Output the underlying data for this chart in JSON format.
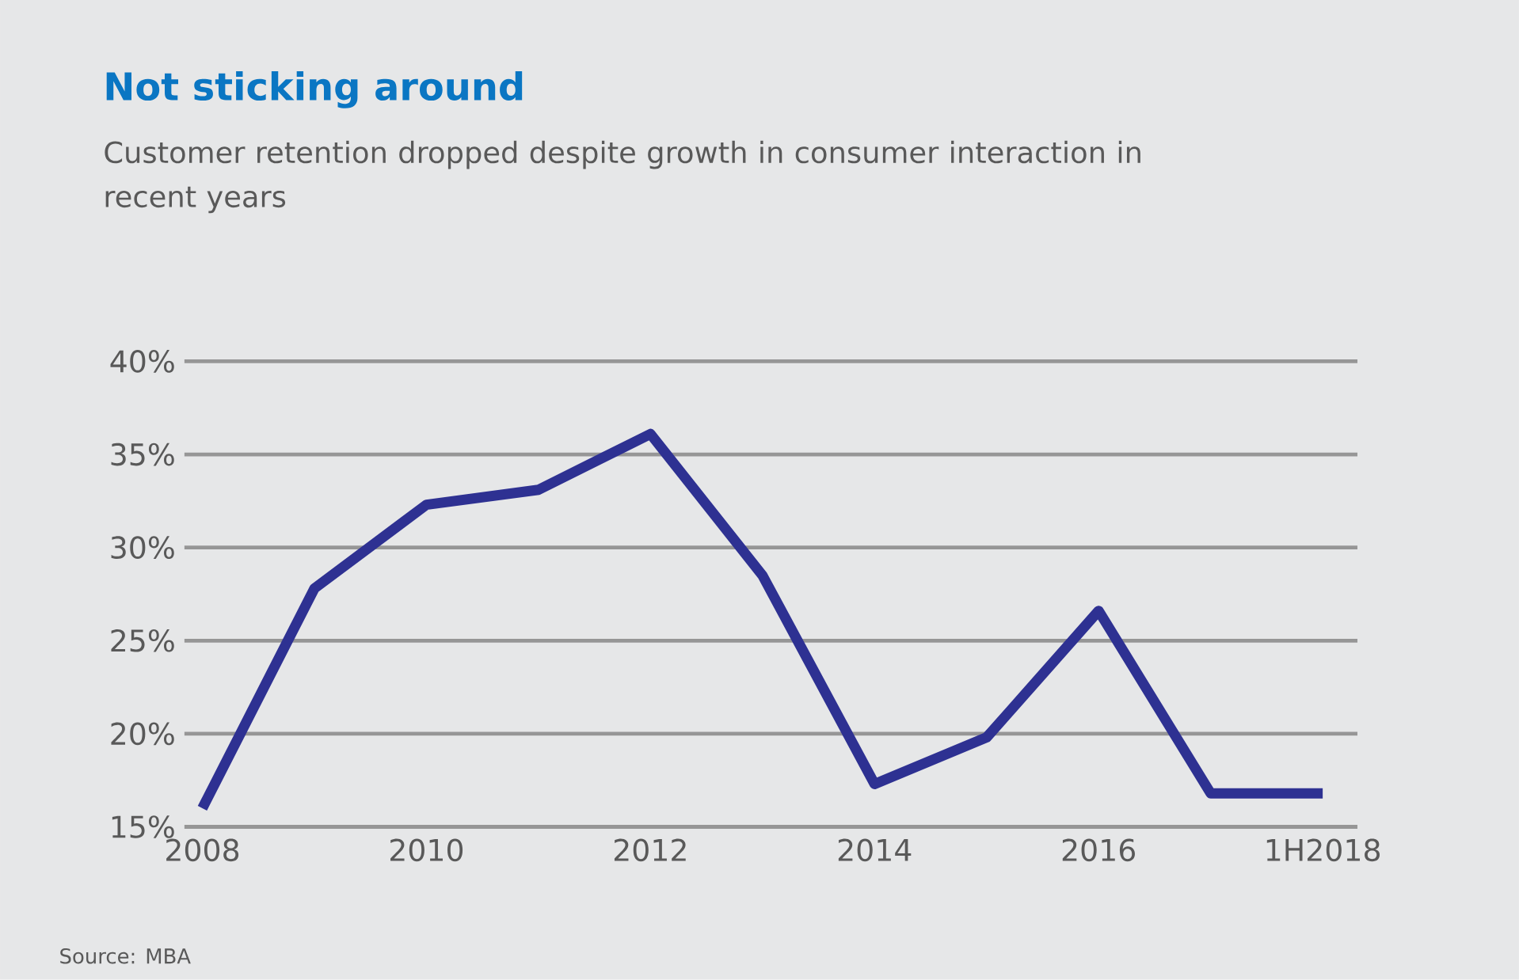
{
  "chart_data": {
    "type": "line",
    "title": "Not sticking around",
    "subtitle": "Customer retention dropped despite growth in consumer interaction in recent years",
    "annotations": [
      "Source: MBA"
    ],
    "categories": [
      "2008",
      null,
      "2010",
      null,
      "2012",
      null,
      "2014",
      null,
      "2016",
      null,
      "1H2018"
    ],
    "values": [
      16.0,
      27.8,
      32.3,
      33.1,
      36.1,
      28.5,
      17.3,
      19.8,
      26.6,
      16.8,
      16.8
    ],
    "color": "#2e3192",
    "ylim": [
      15,
      40
    ],
    "yticks": [
      {
        "value": 15,
        "label": "15%"
      },
      {
        "value": 20,
        "label": "20%"
      },
      {
        "value": 25,
        "label": "25%"
      },
      {
        "value": 30,
        "label": "30%"
      },
      {
        "value": 35,
        "label": "35%"
      },
      {
        "value": 40,
        "label": "40%"
      }
    ],
    "grid": "y"
  }
}
